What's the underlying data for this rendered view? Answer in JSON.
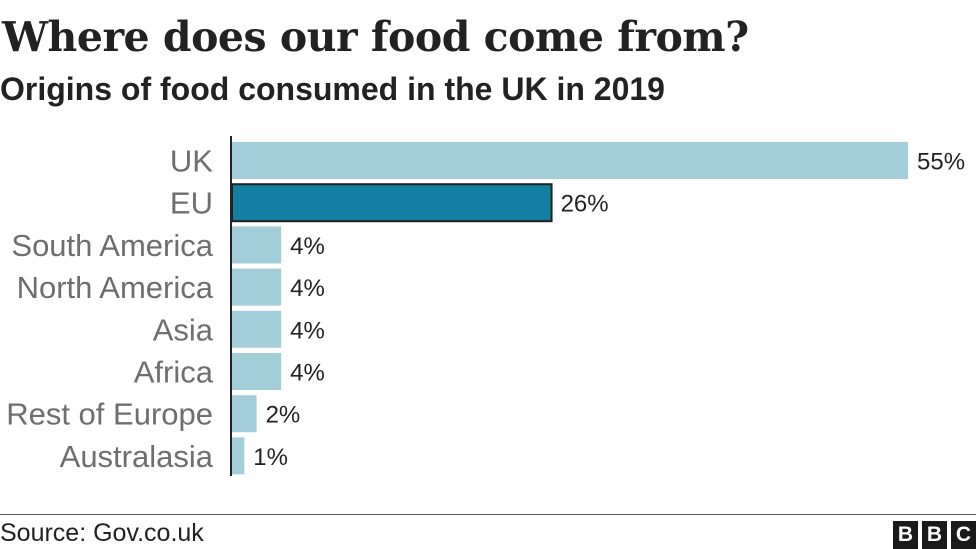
{
  "header": {
    "title": "Where does our food come from?",
    "subtitle": "Origins of food consumed in the UK in 2019"
  },
  "chart_data": {
    "type": "bar",
    "orientation": "horizontal",
    "title": "Where does our food come from?",
    "subtitle": "Origins of food consumed in the UK in 2019",
    "categories": [
      "UK",
      "EU",
      "South America",
      "North America",
      "Asia",
      "Africa",
      "Rest of Europe",
      "Australasia"
    ],
    "values": [
      55,
      26,
      4,
      4,
      4,
      4,
      2,
      1
    ],
    "value_labels": [
      "55%",
      "26%",
      "4%",
      "4%",
      "4%",
      "4%",
      "2%",
      "1%"
    ],
    "highlight": "EU",
    "colors": {
      "bar": "#a3cdd9",
      "highlight": "#137fa1",
      "highlight_outline": "#222222",
      "axis": "#222222",
      "category_label": "#6e6e6e",
      "value_label": "#222222"
    },
    "xlim": [
      0,
      55
    ],
    "grid": false,
    "legend": "none"
  },
  "footer": {
    "source": "Source: Gov.co.uk",
    "logo_letters": [
      "B",
      "B",
      "C"
    ]
  }
}
